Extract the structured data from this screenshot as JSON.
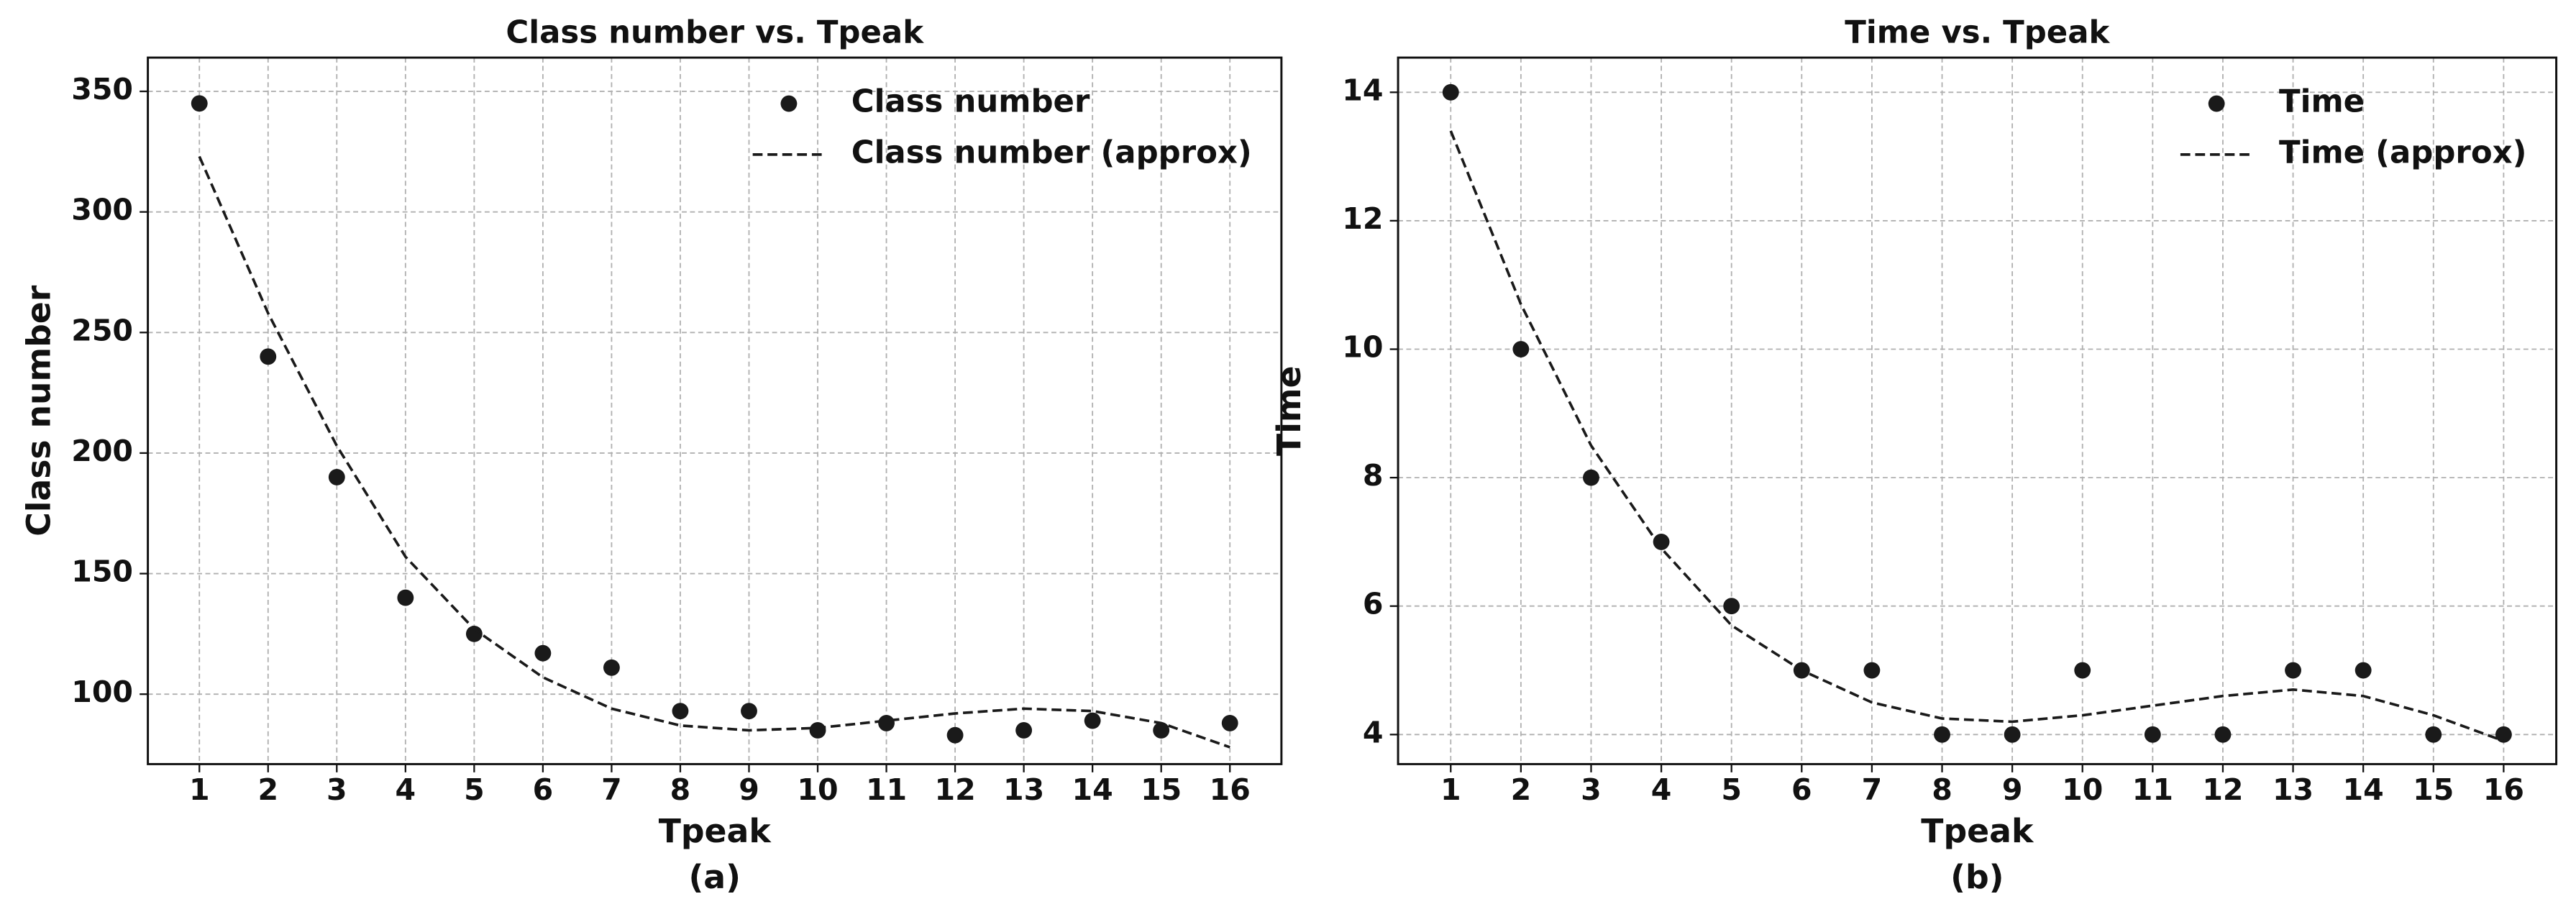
{
  "chart_data": [
    {
      "type": "scatter",
      "title": "Class number vs. Tpeak",
      "xlabel": "Tpeak",
      "ylabel": "Class number",
      "caption": "(a)",
      "x": [
        1,
        2,
        3,
        4,
        5,
        6,
        7,
        8,
        9,
        10,
        11,
        12,
        13,
        14,
        15,
        16
      ],
      "series": [
        {
          "name": "Class number",
          "type": "scatter",
          "color": "#1a1a1a",
          "values": [
            345,
            240,
            190,
            140,
            125,
            117,
            111,
            93,
            93,
            85,
            88,
            83,
            85,
            89,
            85,
            88
          ]
        },
        {
          "name": "Class number (approx)",
          "type": "line",
          "dashed": true,
          "color": "#1a1a1a",
          "values": [
            323,
            258,
            203,
            157,
            127,
            107,
            94,
            87,
            85,
            86,
            89,
            92,
            94,
            93,
            88,
            78
          ]
        }
      ],
      "xlim": [
        0.25,
        16.75
      ],
      "ylim": [
        71,
        364
      ],
      "xticks": [
        1,
        2,
        3,
        4,
        5,
        6,
        7,
        8,
        9,
        10,
        11,
        12,
        13,
        14,
        15,
        16
      ],
      "yticks": [
        100,
        150,
        200,
        250,
        300,
        350
      ],
      "grid": true,
      "legend": "upper right"
    },
    {
      "type": "scatter",
      "title": "Time vs. Tpeak",
      "xlabel": "Tpeak",
      "ylabel": "Time",
      "caption": "(b)",
      "x": [
        1,
        2,
        3,
        4,
        5,
        6,
        7,
        8,
        9,
        10,
        11,
        12,
        13,
        14,
        15,
        16
      ],
      "series": [
        {
          "name": "Time",
          "type": "scatter",
          "color": "#1a1a1a",
          "values": [
            14,
            10,
            8,
            7,
            6,
            5,
            5,
            4,
            4,
            5,
            4,
            4,
            5,
            5,
            4,
            4
          ]
        },
        {
          "name": "Time (approx)",
          "type": "line",
          "dashed": true,
          "color": "#1a1a1a",
          "values": [
            13.4,
            10.7,
            8.5,
            6.9,
            5.7,
            5.0,
            4.5,
            4.25,
            4.2,
            4.3,
            4.45,
            4.6,
            4.7,
            4.6,
            4.3,
            3.9
          ]
        }
      ],
      "xlim": [
        0.25,
        16.75
      ],
      "ylim": [
        3.54,
        14.54
      ],
      "xticks": [
        1,
        2,
        3,
        4,
        5,
        6,
        7,
        8,
        9,
        10,
        11,
        12,
        13,
        14,
        15,
        16
      ],
      "yticks": [
        4,
        6,
        8,
        10,
        12,
        14
      ],
      "grid": true,
      "legend": "upper right"
    }
  ]
}
